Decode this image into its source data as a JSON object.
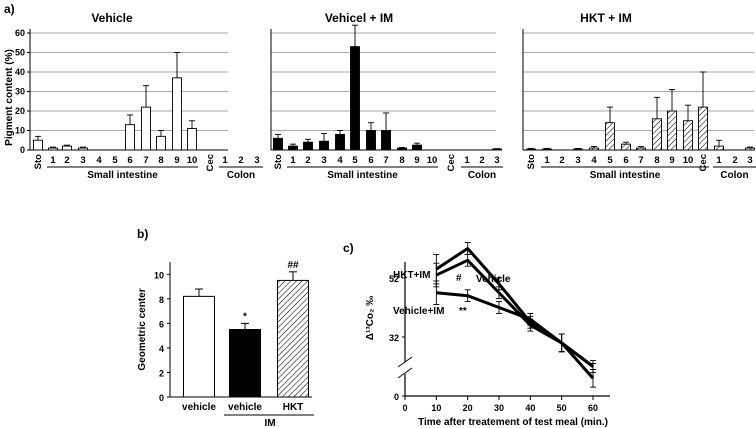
{
  "panel_labels": {
    "a": "a)",
    "b": "b)",
    "c": "c)"
  },
  "chart_data": [
    {
      "id": "a1",
      "type": "bar",
      "title": "Vehicle",
      "ylabel": "Pigment content (%)",
      "ylim": [
        0,
        60
      ],
      "yticks": [
        0,
        10,
        20,
        30,
        40,
        50,
        60
      ],
      "categories": [
        "Sto",
        "1",
        "2",
        "3",
        "4",
        "5",
        "6",
        "7",
        "8",
        "9",
        "10",
        "Cec",
        "1",
        "2",
        "3"
      ],
      "groups": [
        {
          "label": "Small intestine",
          "from": 1,
          "to": 10
        },
        {
          "label": "Colon",
          "from": 12,
          "to": 14
        }
      ],
      "values": [
        5,
        1,
        2,
        1,
        0,
        0,
        13,
        22,
        7,
        37,
        11,
        0,
        0,
        0,
        0
      ],
      "errors": [
        2,
        0.5,
        0.5,
        0.5,
        0,
        0,
        5,
        11,
        3,
        13,
        4,
        0,
        0,
        0,
        0
      ],
      "fill": "open"
    },
    {
      "id": "a2",
      "type": "bar",
      "title": "Vehicel + IM",
      "ylim": [
        0,
        60
      ],
      "yticks": [
        0,
        10,
        20,
        30,
        40,
        50,
        60
      ],
      "categories": [
        "Sto",
        "1",
        "2",
        "3",
        "4",
        "5",
        "6",
        "7",
        "8",
        "9",
        "10",
        "Cec",
        "1",
        "2",
        "3"
      ],
      "groups": [
        {
          "label": "Small intestine",
          "from": 1,
          "to": 10
        },
        {
          "label": "Colon",
          "from": 12,
          "to": 14
        }
      ],
      "values": [
        6,
        2,
        4,
        4.5,
        8,
        53,
        10,
        10,
        1,
        2.5,
        0,
        0,
        0,
        0,
        0.5
      ],
      "errors": [
        2,
        1,
        1.5,
        4,
        2,
        11,
        4,
        9,
        0.3,
        1,
        0,
        0,
        0,
        0,
        0.2
      ],
      "fill": "solid"
    },
    {
      "id": "a3",
      "type": "bar",
      "title": "HKT + IM",
      "ylim": [
        0,
        60
      ],
      "yticks": [
        0,
        10,
        20,
        30,
        40,
        50,
        60
      ],
      "categories": [
        "Sto",
        "1",
        "2",
        "3",
        "4",
        "5",
        "6",
        "7",
        "8",
        "9",
        "10",
        "Cec",
        "1",
        "2",
        "3"
      ],
      "groups": [
        {
          "label": "Small intestine",
          "from": 1,
          "to": 11
        },
        {
          "label": "Colon",
          "from": 12,
          "to": 14
        }
      ],
      "values": [
        0.5,
        0.5,
        0,
        0.5,
        1,
        14,
        3,
        1,
        16,
        20,
        15,
        22,
        2,
        0,
        1
      ],
      "errors": [
        0.3,
        0.3,
        0,
        0.3,
        0.8,
        8,
        1,
        0.8,
        11,
        11,
        8,
        18,
        3,
        0,
        0.5
      ],
      "fill": "hatch"
    },
    {
      "id": "b",
      "type": "bar",
      "ylabel": "Geometric center",
      "ylim": [
        0,
        11
      ],
      "yticks": [
        0,
        2,
        4,
        6,
        8,
        10
      ],
      "categories": [
        "vehicle",
        "vehicle",
        "HKT"
      ],
      "group_label": "IM",
      "values": [
        8.2,
        5.5,
        9.5
      ],
      "errors": [
        0.6,
        0.5,
        0.7
      ],
      "fills": [
        "open",
        "solid",
        "hatch"
      ],
      "annotations": [
        "",
        "*",
        "##"
      ]
    },
    {
      "id": "c",
      "type": "line",
      "xlabel": "Time after treatement of test meal (min.)",
      "ylabel": "Δ¹³Co₂ ‰",
      "xlim": [
        0,
        60
      ],
      "xticks": [
        0,
        10,
        20,
        30,
        40,
        50,
        60
      ],
      "yticks": [
        0,
        32,
        52
      ],
      "axis_break": true,
      "x": [
        10,
        20,
        30,
        40,
        50,
        60
      ],
      "series": [
        {
          "name": "Vehicle",
          "values": [
            55,
            62,
            50,
            37,
            30,
            22
          ],
          "errors": [
            5,
            2,
            2,
            2,
            3,
            1
          ]
        },
        {
          "name": "HKT+IM",
          "values": [
            53,
            58,
            47,
            36,
            30,
            18
          ],
          "errors": [
            4,
            2,
            2,
            2,
            3,
            3
          ]
        },
        {
          "name": "Vehicle+IM",
          "values": [
            47,
            46,
            42,
            38,
            30,
            22
          ],
          "errors": [
            4,
            2,
            2,
            2,
            3,
            2
          ]
        }
      ],
      "annotations": [
        "#",
        "**"
      ]
    }
  ]
}
